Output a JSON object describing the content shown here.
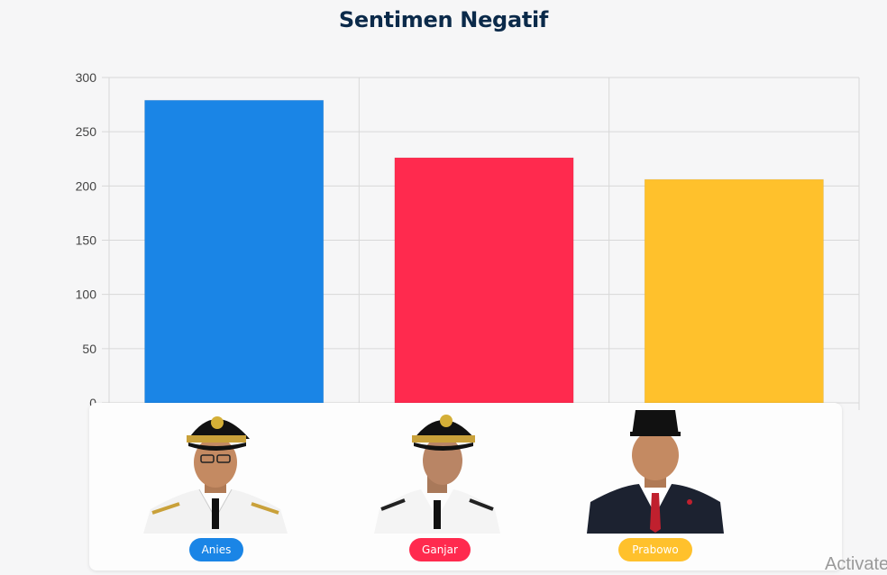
{
  "colors": {
    "anies": "#1a85e6",
    "ganjar": "#ff2a4e",
    "prabowo": "#ffc12c",
    "title": "#0b2a4a",
    "grid": "#d8d8d8"
  },
  "chart_data": {
    "type": "bar",
    "title": "Sentimen Negatif",
    "categories": [
      "Anies",
      "Ganjar",
      "Prabowo"
    ],
    "values": [
      279,
      226,
      206
    ],
    "ylim": [
      0,
      300
    ],
    "yticks": [
      0,
      50,
      100,
      150,
      200,
      250,
      300
    ],
    "xlabel": "",
    "ylabel": "",
    "grid": true
  },
  "candidates": [
    {
      "label": "Anies",
      "icon": "anies-portrait"
    },
    {
      "label": "Ganjar",
      "icon": "ganjar-portrait"
    },
    {
      "label": "Prabowo",
      "icon": "prabowo-portrait"
    }
  ],
  "watermark": "Activate"
}
